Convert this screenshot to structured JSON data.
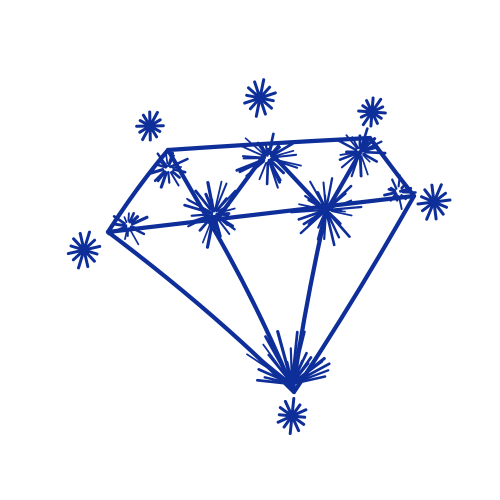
{
  "drawing": {
    "subject": "diamond-doodle",
    "ink_color": "#0E2E9A",
    "background_color": "#FFFFFF"
  }
}
